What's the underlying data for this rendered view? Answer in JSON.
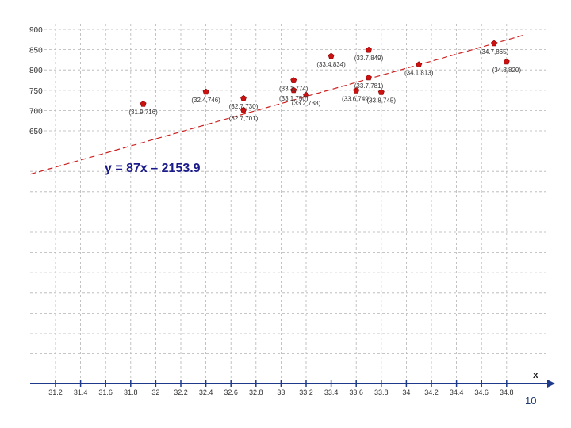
{
  "equation": "y = 87x – 2153.9",
  "page_number": "10",
  "colors": {
    "point": "#cc1111",
    "trendline": "#cc2222",
    "axis": "#1f3a8a",
    "grid": "#b4b4b4",
    "label": "#333333"
  },
  "chart_data": {
    "type": "scatter",
    "title": "",
    "xlabel": "x",
    "ylabel": "",
    "xlim": [
      31.2,
      34.8
    ],
    "ylim": [
      650,
      900
    ],
    "grid": true,
    "x_ticks": [
      "31.2",
      "31.4",
      "31.6",
      "31.8",
      "32",
      "32.2",
      "32.4",
      "32.6",
      "32.8",
      "33",
      "33.2",
      "33.4",
      "33.6",
      "33.8",
      "34",
      "34.2",
      "34.4",
      "34.6",
      "34.8"
    ],
    "y_ticks": [
      "900",
      "850",
      "800",
      "750",
      "700",
      "650"
    ],
    "trendline": {
      "slope": 87,
      "intercept": -2153.9
    },
    "points": [
      {
        "x": 31.9,
        "y": 716,
        "label": "(31.9,716)"
      },
      {
        "x": 32.4,
        "y": 746,
        "label": "(32.4,746)"
      },
      {
        "x": 32.7,
        "y": 730,
        "label": "(32.7,730)"
      },
      {
        "x": 32.7,
        "y": 701,
        "label": "(32.7,701)"
      },
      {
        "x": 33.1,
        "y": 774,
        "label": "(33.1,774)"
      },
      {
        "x": 33.1,
        "y": 750,
        "label": "(33.1,750)"
      },
      {
        "x": 33.2,
        "y": 738,
        "label": "(33.2,738)"
      },
      {
        "x": 33.4,
        "y": 834,
        "label": "(33.4,834)"
      },
      {
        "x": 33.6,
        "y": 749,
        "label": "(33.6,749)"
      },
      {
        "x": 33.7,
        "y": 849,
        "label": "(33.7,849)"
      },
      {
        "x": 33.7,
        "y": 781,
        "label": "(33.7,781)"
      },
      {
        "x": 33.8,
        "y": 745,
        "label": "(33.8,745)"
      },
      {
        "x": 34.1,
        "y": 813,
        "label": "(34.1,813)"
      },
      {
        "x": 34.7,
        "y": 865,
        "label": "(34.7,865)"
      },
      {
        "x": 34.8,
        "y": 820,
        "label": "(34.8,820)"
      }
    ]
  }
}
